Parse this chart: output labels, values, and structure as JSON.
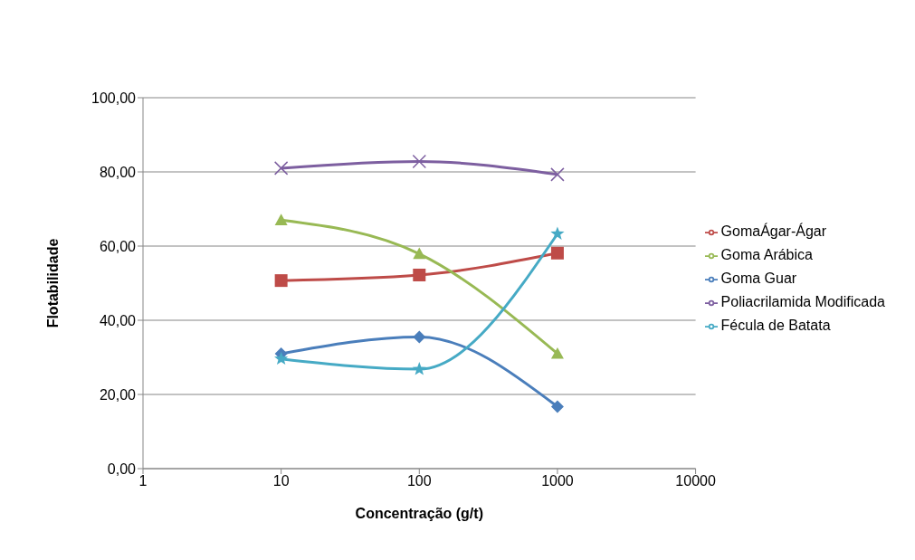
{
  "chart_data": {
    "type": "line",
    "xlabel": "Concentração (g/t)",
    "ylabel": "Flotabilidade",
    "log": "x",
    "x": [
      10,
      100,
      1000
    ],
    "xlim": [
      1,
      10000
    ],
    "xticks": [
      1,
      10,
      100,
      1000,
      10000
    ],
    "ylim": [
      0,
      100
    ],
    "yticks": [
      {
        "value": 0,
        "label": "0,00"
      },
      {
        "value": 20,
        "label": "20,00"
      },
      {
        "value": 40,
        "label": "40,00"
      },
      {
        "value": 60,
        "label": "60,00"
      },
      {
        "value": 80,
        "label": "80,00"
      },
      {
        "value": 100,
        "label": "100,00"
      }
    ],
    "grid": "y",
    "legend": "right",
    "series": [
      {
        "name": "GomaÁgar-Ágar",
        "color": "#be4b48",
        "marker": "square",
        "values": [
          50.7,
          52.2,
          58.1
        ]
      },
      {
        "name": "Goma Arábica",
        "color": "#98b954",
        "marker": "triangle",
        "values": [
          67.0,
          57.9,
          31.0
        ]
      },
      {
        "name": "Goma Guar",
        "color": "#4a7ebb",
        "marker": "diamond",
        "values": [
          31.0,
          35.5,
          16.7
        ]
      },
      {
        "name": "Poliacrilamida Modificada",
        "color": "#7d5fa0",
        "marker": "cross",
        "values": [
          81.0,
          82.8,
          79.3
        ]
      },
      {
        "name": "Fécula de Batata",
        "color": "#46aac5",
        "marker": "star",
        "values": [
          29.6,
          26.8,
          63.3
        ]
      }
    ]
  }
}
